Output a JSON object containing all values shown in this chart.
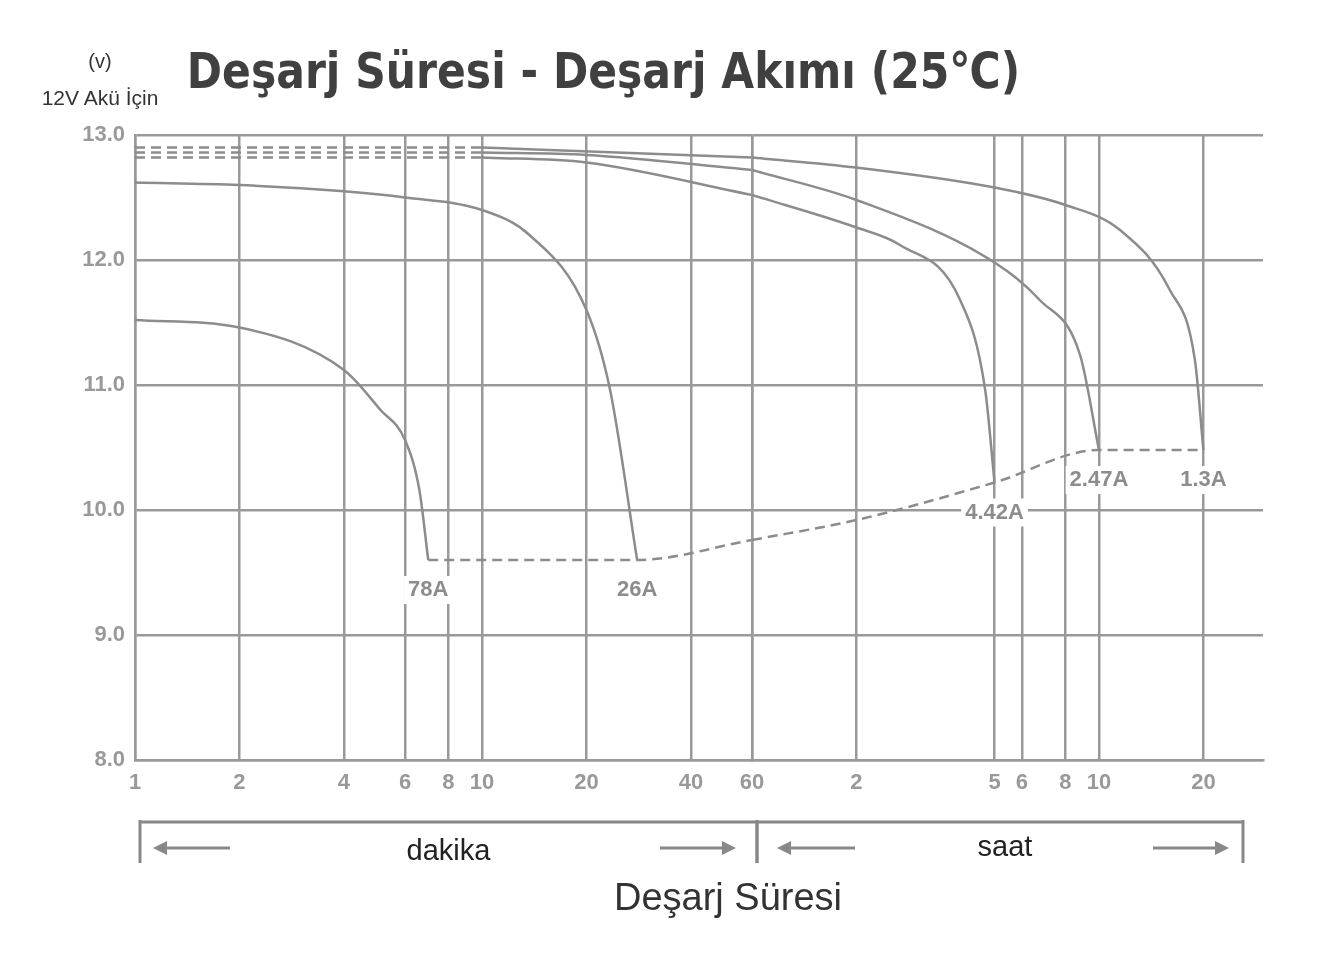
{
  "chart_data": [
    {
      "type": "line",
      "title": "Deşarj Süresi - Deşarj Akımı (25℃)",
      "ylabel": "(v)",
      "xlabel": "Deşarj Süresi",
      "annotations": [
        "12V Akü İçin",
        "dakika"
      ],
      "log": "x",
      "grid": true,
      "legend": false,
      "marker": "none",
      "line_style": "solid",
      "xlim": [
        1,
        60
      ],
      "xticks": [
        1,
        2,
        4,
        6,
        8,
        10,
        20,
        40,
        60
      ],
      "ylim": [
        8,
        13
      ],
      "yticks": [
        {
          "value": 8,
          "label": "8.0"
        },
        {
          "value": 9,
          "label": "9.0"
        },
        {
          "value": 10,
          "label": "10.0"
        },
        {
          "value": 11,
          "label": "11.0"
        },
        {
          "value": 12,
          "label": "12.0"
        },
        {
          "value": 13,
          "label": "13.0"
        }
      ],
      "series": [
        {
          "name": "78A",
          "color": "#8c8c8c",
          "x": [
            1,
            2,
            4,
            5.1,
            6,
            6.6,
            7
          ],
          "values": [
            11.52,
            11.46,
            11.12,
            10.8,
            10.56,
            10.16,
            9.6
          ]
        },
        {
          "name": "26A",
          "color": "#8c8c8c",
          "x": [
            1,
            2,
            4,
            6,
            10,
            13.7,
            20,
            23.4,
            28
          ],
          "values": [
            12.62,
            12.6,
            12.55,
            12.5,
            12.4,
            12.2,
            11.6,
            10.96,
            9.6
          ]
        },
        {
          "color": "#8c8c8c",
          "line_style": "dashed",
          "x": [
            1,
            10
          ],
          "values": [
            12.82,
            12.82
          ]
        },
        {
          "color": "#8c8c8c",
          "x": [
            10,
            20,
            60
          ],
          "values": [
            12.82,
            12.78,
            12.52
          ]
        },
        {
          "color": "#8c8c8c",
          "line_style": "dashed",
          "x": [
            1,
            10
          ],
          "values": [
            12.86,
            12.86
          ]
        },
        {
          "color": "#8c8c8c",
          "x": [
            10,
            20,
            60
          ],
          "values": [
            12.86,
            12.84,
            12.72
          ]
        },
        {
          "color": "#8c8c8c",
          "line_style": "dashed",
          "x": [
            1,
            10
          ],
          "values": [
            12.9,
            12.9
          ]
        },
        {
          "color": "#8c8c8c",
          "x": [
            10,
            60
          ],
          "values": [
            12.9,
            12.82
          ]
        },
        {
          "color": "#8c8c8c",
          "line_style": "dashed",
          "x": [
            7,
            28,
            60
          ],
          "values": [
            9.6,
            9.6,
            9.76
          ]
        }
      ]
    },
    {
      "type": "line",
      "annotations": [
        "saat"
      ],
      "log": "x",
      "grid": true,
      "legend": false,
      "marker": "none",
      "line_style": "solid",
      "tick_labels": "x",
      "xlim": [
        1,
        29.7
      ],
      "xticks": [
        2,
        5,
        6,
        8,
        10,
        20
      ],
      "ylim": [
        8,
        13
      ],
      "yticks": [
        8,
        9,
        10,
        11,
        12,
        13
      ],
      "series": [
        {
          "name": "4.42A",
          "color": "#8c8c8c",
          "x": [
            1,
            2,
            2.67,
            3.98,
            4.7,
            5
          ],
          "values": [
            12.52,
            12.26,
            12.12,
            11.68,
            10.96,
            10.22
          ]
        },
        {
          "name": "2.47A",
          "color": "#8c8c8c",
          "x": [
            1,
            2,
            5,
            6.75,
            8.82,
            10
          ],
          "values": [
            12.72,
            12.48,
            11.98,
            11.68,
            11.24,
            10.48
          ]
        },
        {
          "name": "1.3A",
          "color": "#8c8c8c",
          "x": [
            1,
            2,
            5,
            8,
            11.5,
            16,
            18.9,
            20
          ],
          "values": [
            12.82,
            12.74,
            12.58,
            12.44,
            12.24,
            11.76,
            11.2,
            10.48
          ]
        },
        {
          "color": "#8c8c8c",
          "line_style": "dashed",
          "x": [
            1,
            2,
            5,
            10,
            20
          ],
          "values": [
            9.76,
            9.92,
            10.22,
            10.48,
            10.48
          ]
        }
      ]
    }
  ]
}
